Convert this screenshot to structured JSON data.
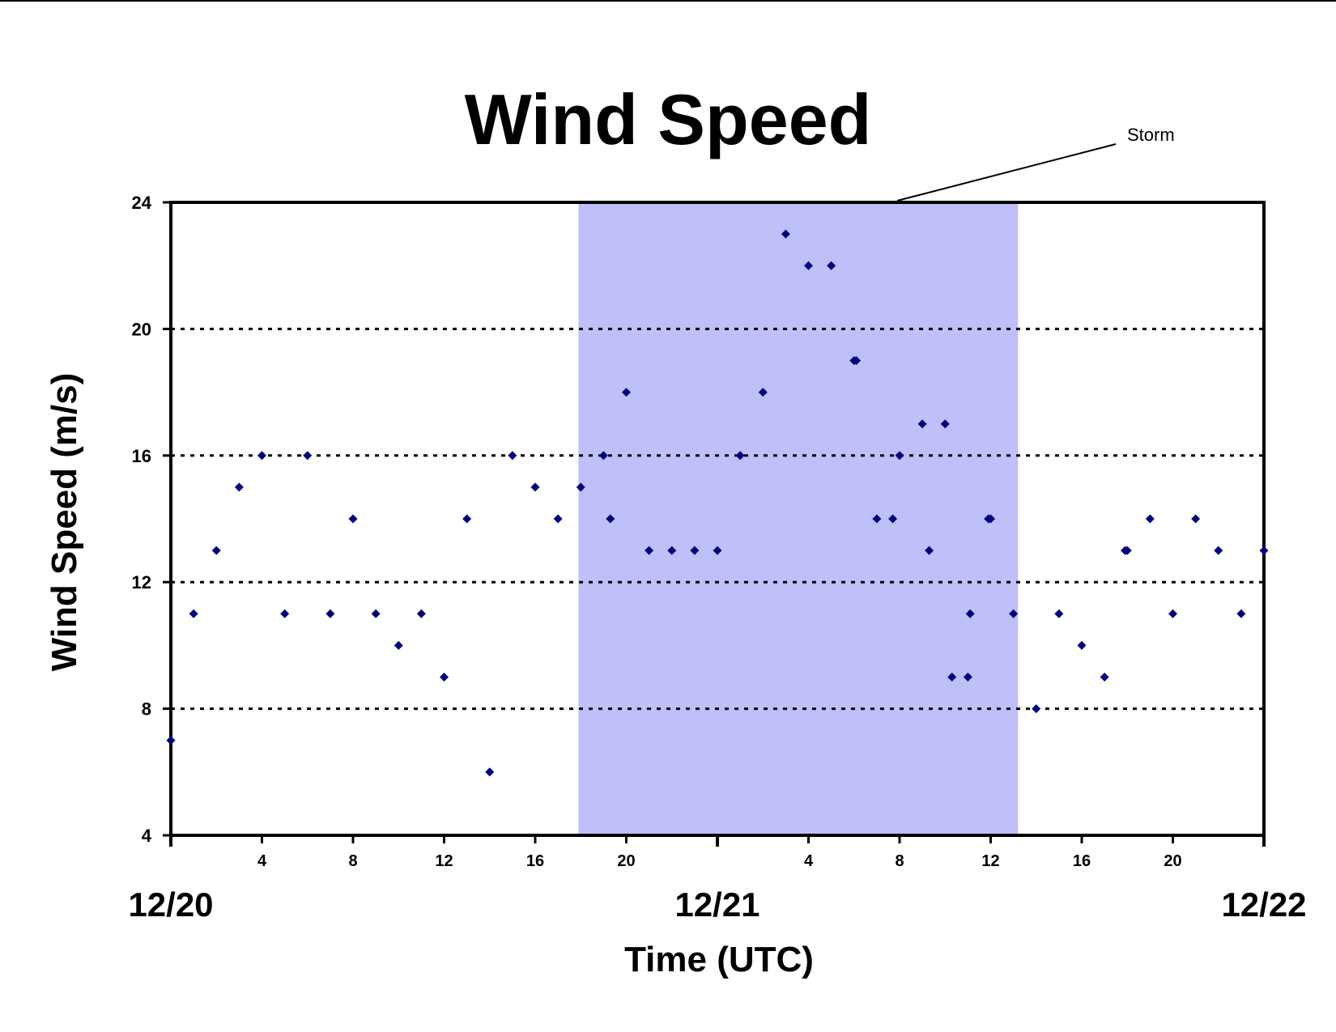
{
  "chart_data": {
    "type": "scatter",
    "title": "Wind Speed",
    "xlabel": "Time (UTC)",
    "ylabel": "Wind Speed (m/s)",
    "ylim": [
      4,
      24
    ],
    "xlim_hours": [
      0,
      48
    ],
    "yticks": [
      4,
      8,
      12,
      16,
      20,
      24
    ],
    "grid_values": [
      8,
      12,
      16,
      20
    ],
    "grid": "dotted horizontal",
    "x_hour_ticks": [
      {
        "hour": 4,
        "label": "4"
      },
      {
        "hour": 8,
        "label": "8"
      },
      {
        "hour": 12,
        "label": "12"
      },
      {
        "hour": 16,
        "label": "16"
      },
      {
        "hour": 20,
        "label": "20"
      },
      {
        "hour": 28,
        "label": "4"
      },
      {
        "hour": 32,
        "label": "8"
      },
      {
        "hour": 36,
        "label": "12"
      },
      {
        "hour": 40,
        "label": "16"
      },
      {
        "hour": 44,
        "label": "20"
      }
    ],
    "date_labels": [
      {
        "hour": 0,
        "label": "12/20"
      },
      {
        "hour": 24,
        "label": "12/21"
      },
      {
        "hour": 48,
        "label": "12/22"
      }
    ],
    "storm_band": {
      "label": "Storm",
      "start_hour": 17.9,
      "end_hour": 37.2,
      "color": "#bfbff9"
    },
    "marker_color": "#000080",
    "series": [
      {
        "points": [
          [
            0,
            7
          ],
          [
            1,
            11
          ],
          [
            2,
            13
          ],
          [
            3,
            15
          ],
          [
            4,
            16
          ],
          [
            5,
            11
          ],
          [
            6,
            16
          ],
          [
            7,
            11
          ],
          [
            8,
            14
          ],
          [
            9,
            11
          ],
          [
            10,
            10
          ],
          [
            11,
            11
          ],
          [
            12,
            9
          ],
          [
            13,
            14
          ],
          [
            14,
            6
          ],
          [
            15,
            16
          ],
          [
            16,
            15
          ],
          [
            17,
            14
          ],
          [
            18,
            15
          ],
          [
            19,
            16
          ],
          [
            19.3,
            14
          ],
          [
            20,
            18
          ],
          [
            21,
            13
          ],
          [
            22,
            13
          ],
          [
            23,
            13
          ],
          [
            24,
            13
          ],
          [
            25,
            16
          ],
          [
            26,
            18
          ],
          [
            27,
            23
          ],
          [
            28,
            22
          ],
          [
            29,
            22
          ],
          [
            30,
            19
          ],
          [
            30.1,
            19
          ],
          [
            31,
            14
          ],
          [
            31.7,
            14
          ],
          [
            32,
            16
          ],
          [
            33,
            17
          ],
          [
            33.3,
            13
          ],
          [
            34,
            17
          ],
          [
            34.3,
            9
          ],
          [
            35,
            9
          ],
          [
            35.1,
            11
          ],
          [
            35.9,
            14
          ],
          [
            36,
            14
          ],
          [
            37,
            11
          ],
          [
            38,
            8
          ],
          [
            39,
            11
          ],
          [
            40,
            10
          ],
          [
            41,
            9
          ],
          [
            41.9,
            13
          ],
          [
            42,
            13
          ],
          [
            43,
            14
          ],
          [
            44,
            11
          ],
          [
            45,
            14
          ],
          [
            46,
            13
          ],
          [
            47,
            11
          ],
          [
            48,
            13
          ]
        ]
      }
    ]
  }
}
